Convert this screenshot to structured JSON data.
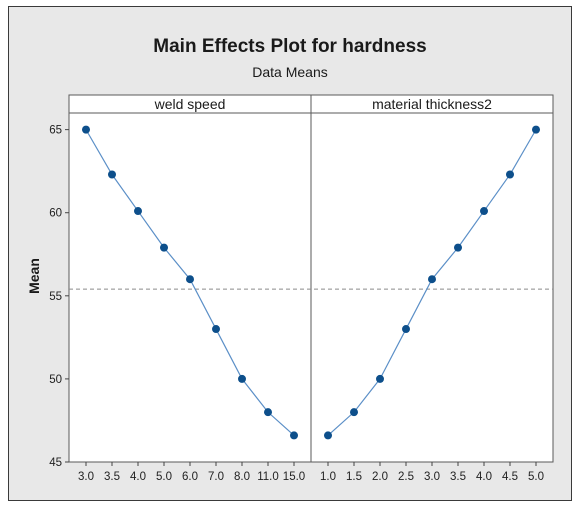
{
  "chart_data": {
    "type": "line",
    "title": "Main Effects Plot for hardness",
    "subtitle": "Data Means",
    "ylabel": "Mean",
    "ylim": [
      45,
      66
    ],
    "yticks": [
      45,
      50,
      55,
      60,
      65
    ],
    "reference_line": 55.4,
    "colors": {
      "series": "#0d4f8b",
      "line": "#5b8fc7",
      "reference": "#8a8a8a"
    },
    "panels": [
      {
        "label": "weld speed",
        "x": [
          "3.0",
          "3.5",
          "4.0",
          "5.0",
          "6.0",
          "7.0",
          "8.0",
          "11.0",
          "15.0"
        ],
        "values": [
          65.0,
          62.3,
          60.1,
          57.9,
          56.0,
          53.0,
          50.0,
          48.0,
          46.6
        ]
      },
      {
        "label": "material thickness2",
        "x": [
          "1.0",
          "1.5",
          "2.0",
          "2.5",
          "3.0",
          "3.5",
          "4.0",
          "4.5",
          "5.0"
        ],
        "values": [
          46.6,
          48.0,
          50.0,
          53.0,
          56.0,
          57.9,
          60.1,
          62.3,
          65.0
        ]
      }
    ]
  }
}
